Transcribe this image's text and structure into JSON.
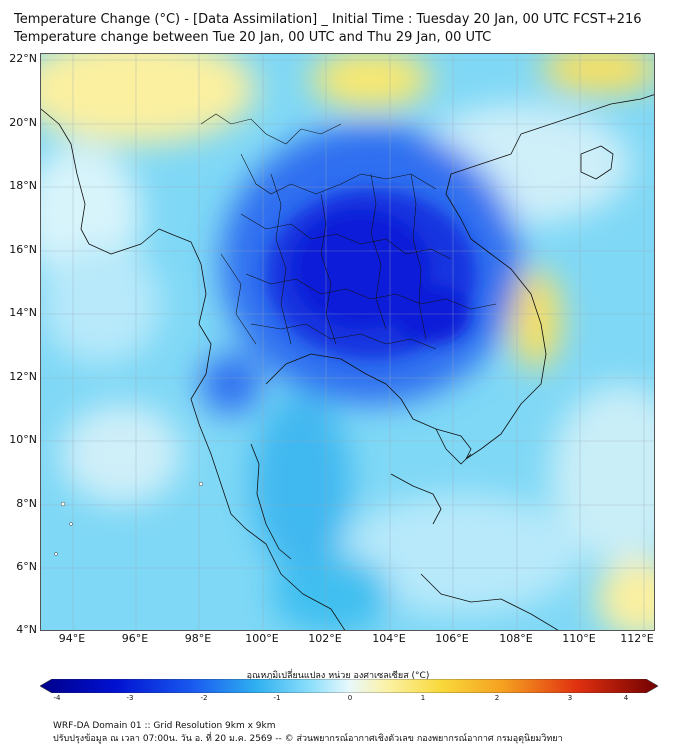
{
  "title": {
    "line1": "Temperature Change (°C) - [Data Assimilation] _ Initial Time : Tuesday 20 Jan, 00 UTC FCST+216",
    "line2": "Temperature change between Tue 20 Jan, 00 UTC and Thu 29 Jan, 00 UTC"
  },
  "map": {
    "lat_labels": [
      "22°N",
      "20°N",
      "18°N",
      "16°N",
      "14°N",
      "12°N",
      "10°N",
      "8°N",
      "6°N",
      "4°N"
    ],
    "lon_labels": [
      "94°E",
      "96°E",
      "98°E",
      "100°E",
      "102°E",
      "104°E",
      "106°E",
      "108°E",
      "110°E",
      "112°E"
    ],
    "lat_range": [
      4,
      22.2
    ],
    "lon_range": [
      93,
      112.4
    ]
  },
  "colorbar": {
    "label": "อุณหภูมิเปลี่ยนแปลง หน่วย องศาเซลเซียส (°C)",
    "ticks": [
      "-4",
      "-3",
      "-2",
      "-1",
      "0",
      "1",
      "2",
      "3",
      "4"
    ],
    "range": [
      -4,
      4
    ]
  },
  "footer": {
    "line1": "WRF-DA Domain 01 :: Grid Resolution 9km x 9km",
    "line2": "ปรับปรุงข้อมูล ณ เวลา 07:00น. วัน อ. ที่ 20 ม.ค. 2569 -- © ส่วนพยากรณ์อากาศเชิงตัวเลข กองพยากรณ์อากาศ กรมอุตุนิยมวิทยา"
  },
  "colors": {
    "deep_blue": "#0a1fd8",
    "blue": "#2f6ef0",
    "sky": "#3fbff0",
    "light_sky": "#8fe0fb",
    "pale": "#d8f4fb",
    "pale_yellow": "#fbf2a8",
    "yellow": "#f9e05a"
  }
}
